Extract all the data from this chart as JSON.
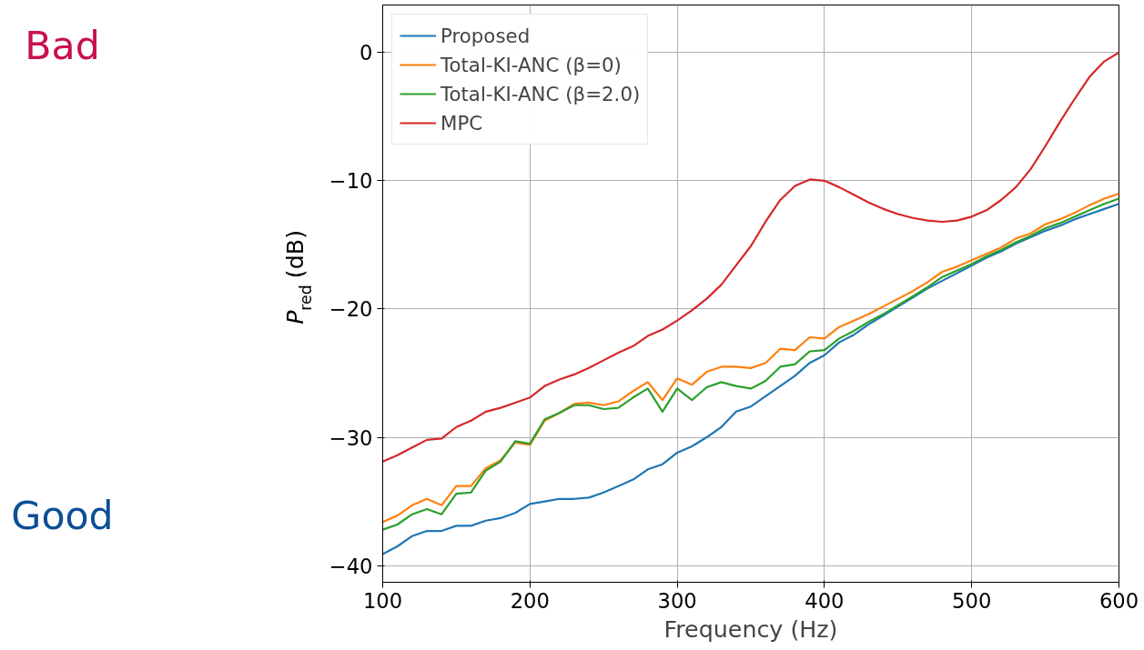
{
  "chart_data": {
    "type": "line",
    "xlabel": "Frequency (Hz)",
    "ylabel": "P$_{red}$ (dB)",
    "x": [
      100,
      110,
      120,
      130,
      140,
      150,
      160,
      170,
      180,
      190,
      200,
      210,
      220,
      230,
      240,
      250,
      260,
      270,
      280,
      290,
      300,
      310,
      320,
      330,
      340,
      350,
      360,
      370,
      380,
      390,
      400,
      410,
      420,
      430,
      440,
      450,
      460,
      470,
      480,
      490,
      500,
      510,
      520,
      530,
      540,
      550,
      560,
      570,
      580,
      590,
      600
    ],
    "series": [
      {
        "name": "Proposed",
        "color": "#1f77b4",
        "values": [
          -39.1,
          -38.5,
          -37.7,
          -37.3,
          -37.3,
          -36.9,
          -36.9,
          -36.5,
          -36.3,
          -35.9,
          -35.2,
          -35.0,
          -34.8,
          -34.8,
          -34.7,
          -34.3,
          -33.8,
          -33.3,
          -32.5,
          -32.1,
          -31.2,
          -30.7,
          -30.0,
          -29.2,
          -28.0,
          -27.6,
          -26.8,
          -26.0,
          -25.2,
          -24.2,
          -23.6,
          -22.6,
          -22.0,
          -21.2,
          -20.5,
          -19.8,
          -19.1,
          -18.4,
          -17.8,
          -17.2,
          -16.6,
          -16.0,
          -15.5,
          -14.9,
          -14.4,
          -13.9,
          -13.5,
          -13.0,
          -12.6,
          -12.2,
          -11.8
        ]
      },
      {
        "name": "Total-KI-ANC (β=0)",
        "color": "#ff7f0e",
        "values": [
          -36.6,
          -36.1,
          -35.3,
          -34.8,
          -35.3,
          -33.8,
          -33.8,
          -32.4,
          -31.8,
          -30.4,
          -30.6,
          -28.7,
          -28.1,
          -27.4,
          -27.3,
          -27.5,
          -27.2,
          -26.4,
          -25.7,
          -27.1,
          -25.4,
          -25.9,
          -24.9,
          -24.5,
          -24.5,
          -24.6,
          -24.2,
          -23.1,
          -23.2,
          -22.2,
          -22.3,
          -21.4,
          -20.9,
          -20.4,
          -19.8,
          -19.2,
          -18.6,
          -17.9,
          -17.1,
          -16.7,
          -16.2,
          -15.7,
          -15.2,
          -14.5,
          -14.1,
          -13.4,
          -13.0,
          -12.5,
          -11.9,
          -11.4,
          -11.0
        ]
      },
      {
        "name": "Total-KI-ANC (β=2.0)",
        "color": "#2ca02c",
        "values": [
          -37.2,
          -36.8,
          -36.0,
          -35.6,
          -36.0,
          -34.4,
          -34.3,
          -32.6,
          -31.9,
          -30.3,
          -30.5,
          -28.6,
          -28.1,
          -27.5,
          -27.5,
          -27.8,
          -27.7,
          -26.9,
          -26.2,
          -28.0,
          -26.2,
          -27.1,
          -26.1,
          -25.7,
          -26.0,
          -26.2,
          -25.6,
          -24.5,
          -24.3,
          -23.3,
          -23.2,
          -22.3,
          -21.7,
          -21.0,
          -20.4,
          -19.7,
          -19.0,
          -18.3,
          -17.5,
          -17.0,
          -16.5,
          -15.9,
          -15.4,
          -14.8,
          -14.3,
          -13.7,
          -13.3,
          -12.8,
          -12.3,
          -11.8,
          -11.4
        ]
      },
      {
        "name": "MPC",
        "color": "#d62728",
        "values": [
          -31.9,
          -31.4,
          -30.8,
          -30.2,
          -30.1,
          -29.2,
          -28.7,
          -28.0,
          -27.7,
          -27.3,
          -26.9,
          -26.0,
          -25.5,
          -25.1,
          -24.6,
          -24.0,
          -23.4,
          -22.9,
          -22.1,
          -21.6,
          -20.9,
          -20.1,
          -19.2,
          -18.1,
          -16.6,
          -15.1,
          -13.2,
          -11.5,
          -10.4,
          -9.9,
          -10.0,
          -10.5,
          -11.1,
          -11.7,
          -12.2,
          -12.6,
          -12.9,
          -13.1,
          -13.2,
          -13.1,
          -12.8,
          -12.3,
          -11.5,
          -10.5,
          -9.1,
          -7.3,
          -5.4,
          -3.6,
          -1.9,
          -0.7,
          0.0
        ]
      }
    ],
    "xlim": [
      100,
      600
    ],
    "xticks": [
      100,
      200,
      300,
      400,
      500,
      600
    ],
    "ylim": [
      -41.3,
      3.7
    ],
    "yticks": [
      {
        "value": -40,
        "label": "−40"
      },
      {
        "value": -30,
        "label": "−30"
      },
      {
        "value": -20,
        "label": "−20"
      },
      {
        "value": -10,
        "label": "−10"
      },
      0
    ],
    "grid": true,
    "legend": "top left",
    "line_style": "solid",
    "marker": "none",
    "annotations": [
      "Bad",
      "Good"
    ]
  }
}
